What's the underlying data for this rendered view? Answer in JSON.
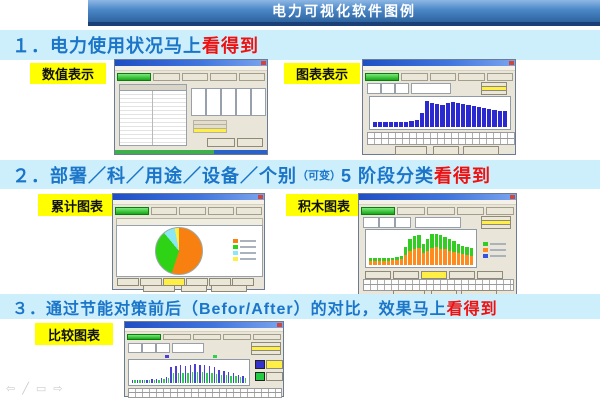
{
  "banner": {
    "title": "电力可视化软件图例"
  },
  "sections": [
    {
      "heading_main": "１．电力使用状况马上",
      "heading_accent": "看得到"
    },
    {
      "heading_main": "２．部署／科／用途／设备／个别",
      "heading_paren": "（可变）",
      "heading_tail": "5 阶段分类",
      "heading_accent": "看得到"
    },
    {
      "heading_main": "３．通过节能对策前后（Befor/After）的对比，效果马上",
      "heading_accent": "看得到"
    }
  ],
  "labels": {
    "numeric": "数值表示",
    "chart": "图表表示",
    "cumulative": "累计图表",
    "stacked": "积木图表",
    "comparison": "比较图表"
  },
  "presenter_nav": {
    "back": "⇦",
    "pen": "╱",
    "box": "▭",
    "forward": "⇨"
  },
  "colors": {
    "banner_blue": "#4a86c6",
    "banner_border_navy": "#1b3f77",
    "strip_light_blue": "#cdeefb",
    "heading_blue": "#1b75c8",
    "accent_red": "#ee1111",
    "label_yellow": "#ffff00",
    "window_chrome_gray": "#e9e5d9",
    "titlebar_blue": "#3f74dd",
    "active_tab_green": "#17a917"
  },
  "chart_data": [
    {
      "id": "hourly-bar",
      "type": "bar",
      "title": "",
      "color": "#2a2ad0",
      "ylim": [
        0,
        10.5
      ],
      "values": [
        1.8,
        1.8,
        1.9,
        1.8,
        1.8,
        1.9,
        2.0,
        2.1,
        2.6,
        5.2,
        9.6,
        9.1,
        8.7,
        8.3,
        8.9,
        9.3,
        9.0,
        8.8,
        8.3,
        7.9,
        7.5,
        7.1,
        6.7,
        6.3,
        5.9,
        6.1
      ]
    },
    {
      "id": "cumulative-pie",
      "type": "pie",
      "title": "",
      "slices": [
        {
          "color": "#f88010",
          "value": 55
        },
        {
          "color": "#2fd315",
          "value": 34
        },
        {
          "color": "#8ae8f5",
          "value": 8
        },
        {
          "color": "#ffee44",
          "value": 3
        }
      ],
      "legend_colors": [
        "#f88010",
        "#2fd315",
        "#8ae8f5",
        "#ffee44"
      ],
      "legend_position": "right"
    },
    {
      "id": "stacked-bar",
      "type": "stacked-bar",
      "title": "",
      "ylim": [
        0,
        10.5
      ],
      "series": [
        {
          "name": "base",
          "color": "#ff8a1e",
          "values": [
            1.4,
            1.4,
            1.4,
            1.4,
            1.4,
            1.5,
            1.6,
            1.8,
            3.2,
            4.6,
            5.0,
            5.4,
            3.8,
            4.6,
            5.4,
            5.6,
            5.2,
            5.0,
            4.6,
            4.2,
            3.8,
            3.4,
            3.2,
            3.0
          ]
        },
        {
          "name": "top",
          "color": "#33cc22",
          "values": [
            0.7,
            0.7,
            0.7,
            0.7,
            0.7,
            0.7,
            0.8,
            1.0,
            2.4,
            3.8,
            4.2,
            4.0,
            2.8,
            3.8,
            4.4,
            4.4,
            4.2,
            4.0,
            3.6,
            3.4,
            3.0,
            2.6,
            2.4,
            2.4
          ]
        }
      ],
      "legend_colors": [
        "#33cc22",
        "#ff8a1e",
        "#3355dd"
      ],
      "legend_position": "right"
    },
    {
      "id": "before-after",
      "type": "grouped-bar",
      "title": "",
      "ylim": [
        0,
        8.5
      ],
      "series": [
        {
          "name": "before",
          "color": "#4b3fd6",
          "values": [
            1.4,
            1.4,
            1.4,
            1.4,
            1.5,
            1.5,
            1.9,
            2.4,
            6.4,
            6.9,
            7.1,
            6.7,
            7.4,
            7.7,
            7.4,
            7.1,
            6.9,
            6.4,
            5.4,
            4.9,
            4.4,
            3.9,
            3.4,
            2.9
          ]
        },
        {
          "name": "after",
          "color": "#2fd04a",
          "values": [
            1.1,
            1.1,
            1.1,
            1.1,
            1.2,
            1.2,
            1.5,
            1.9,
            3.9,
            4.1,
            4.2,
            4.0,
            4.3,
            4.4,
            4.3,
            4.2,
            4.0,
            3.7,
            3.4,
            3.1,
            2.9,
            2.7,
            2.4,
            2.1
          ]
        }
      ],
      "legend_colors": [
        "#4b3fd6",
        "#2fd04a"
      ],
      "legend_position": "right"
    }
  ]
}
